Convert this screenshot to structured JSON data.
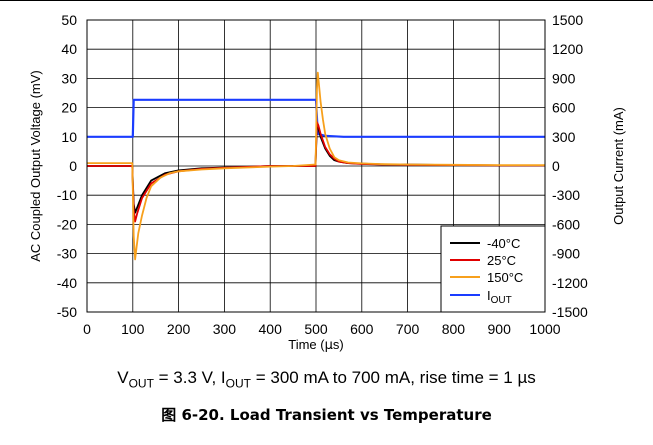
{
  "chart_data": {
    "type": "line",
    "xlabel_parts": [
      "Time (",
      "µ",
      "s)"
    ],
    "ylabel": "AC Coupled Output Voltage (mV)",
    "y2label": "Output Current (mA)",
    "xlim": [
      0,
      1000
    ],
    "ylim": [
      -50,
      50
    ],
    "y2lim": [
      -1500,
      1500
    ],
    "xticks": [
      "0",
      "100",
      "200",
      "300",
      "400",
      "500",
      "600",
      "700",
      "800",
      "900",
      "1000"
    ],
    "yticks": [
      "50",
      "40",
      "30",
      "20",
      "10",
      "0",
      "-10",
      "-20",
      "-30",
      "-40",
      "-50"
    ],
    "y2ticks": [
      "1500",
      "1200",
      "900",
      "600",
      "300",
      "0",
      "-300",
      "-600",
      "-900",
      "-1200",
      "-1500"
    ],
    "grid": true,
    "legend_position": "bottom-right",
    "series": [
      {
        "name": "-40°C",
        "axis": "left",
        "color": "#000000",
        "x": [
          0,
          99,
          100,
          102,
          105,
          110,
          120,
          140,
          170,
          200,
          250,
          300,
          350,
          400,
          450,
          499,
          500,
          502,
          505,
          510,
          520,
          530,
          540,
          550,
          570,
          600,
          650,
          700,
          800,
          900,
          1000
        ],
        "y": [
          0,
          0,
          -5,
          -13,
          -16,
          -14,
          -10,
          -5,
          -2.5,
          -1.5,
          -0.8,
          -0.5,
          -0.3,
          0,
          0,
          0,
          5,
          14,
          13,
          10,
          6,
          3.5,
          2,
          1.5,
          1,
          0.8,
          0.5,
          0.5,
          0.3,
          0.2,
          0.2
        ]
      },
      {
        "name": "25°C",
        "axis": "left",
        "color": "#e00000",
        "x": [
          0,
          99,
          100,
          102,
          105,
          110,
          120,
          140,
          170,
          200,
          250,
          300,
          350,
          400,
          450,
          499,
          500,
          502,
          505,
          510,
          520,
          530,
          540,
          550,
          570,
          600,
          650,
          700,
          800,
          900,
          1000
        ],
        "y": [
          0,
          0,
          -6,
          -15,
          -19,
          -16,
          -11,
          -6,
          -3,
          -1.8,
          -1,
          -0.6,
          -0.3,
          0,
          0,
          0,
          6,
          15,
          14,
          11,
          6.5,
          4,
          2.5,
          1.5,
          1,
          0.7,
          0.5,
          0.4,
          0.3,
          0.2,
          0.2
        ]
      },
      {
        "name": "150°C",
        "axis": "left",
        "color": "#f7a01c",
        "x": [
          0,
          99,
          100,
          102,
          105,
          108,
          112,
          120,
          130,
          140,
          160,
          180,
          200,
          250,
          300,
          350,
          400,
          450,
          499,
          500,
          502,
          504,
          507,
          510,
          515,
          520,
          530,
          540,
          550,
          570,
          600,
          650,
          700,
          800,
          900,
          1000
        ],
        "y": [
          1,
          1,
          -8,
          -24,
          -32,
          -28,
          -23,
          -17,
          -11,
          -7,
          -4,
          -2.5,
          -1.8,
          -1.2,
          -0.8,
          -0.5,
          -0.2,
          0,
          0.5,
          8,
          26,
          32,
          27,
          22,
          16,
          11,
          6,
          3,
          2,
          1.2,
          0.9,
          0.6,
          0.5,
          0.4,
          0.3,
          0.3
        ]
      },
      {
        "name": "I_OUT",
        "axis": "right",
        "color": "#1a3cff",
        "x": [
          0,
          100,
          102,
          500,
          504,
          520,
          560,
          1000
        ],
        "y": [
          300,
          300,
          680,
          680,
          330,
          310,
          300,
          300
        ]
      }
    ],
    "legend": [
      {
        "label": "-40°C"
      },
      {
        "label": "25°C"
      },
      {
        "label": "150°C"
      },
      {
        "label_main": "I",
        "label_sub": "OUT"
      }
    ]
  },
  "caption": {
    "v_main": "V",
    "v_sub": "OUT",
    "v_rest": " = 3.3 V, ",
    "i_main": "I",
    "i_sub": "OUT",
    "i_rest": " = 300 mA to 700 mA, rise time = 1 µs"
  },
  "figure_title": "图 6-20. Load Transient vs Temperature"
}
